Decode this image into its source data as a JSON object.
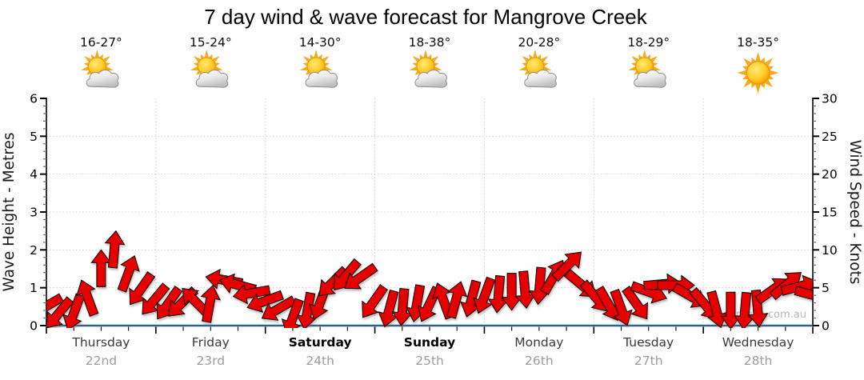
{
  "title": "7 day wind & wave forecast for Mangrove Creek",
  "watermark": "seabreeze.com.au",
  "days": [
    {
      "name": "Thursday",
      "date": "22nd",
      "temp": "16-27°",
      "icon": "sun-cloud",
      "weekend": false
    },
    {
      "name": "Friday",
      "date": "23rd",
      "temp": "15-24°",
      "icon": "sun-cloud",
      "weekend": false
    },
    {
      "name": "Saturday",
      "date": "24th",
      "temp": "14-30°",
      "icon": "sun-cloud",
      "weekend": true
    },
    {
      "name": "Sunday",
      "date": "25th",
      "temp": "18-38°",
      "icon": "sun-cloud",
      "weekend": true
    },
    {
      "name": "Monday",
      "date": "26th",
      "temp": "20-28°",
      "icon": "sun-cloud",
      "weekend": false
    },
    {
      "name": "Tuesday",
      "date": "27th",
      "temp": "18-29°",
      "icon": "sun-cloud",
      "weekend": false
    },
    {
      "name": "Wednesday",
      "date": "28th",
      "temp": "18-35°",
      "icon": "sun",
      "weekend": false
    }
  ],
  "left_axis": {
    "label": "Wave Height - Metres",
    "min": 0,
    "max": 6,
    "ticks": [
      0,
      1,
      2,
      3,
      4,
      5,
      6
    ]
  },
  "right_axis": {
    "label": "Wind Speed - Knots",
    "min": 0,
    "max": 30,
    "ticks": [
      0,
      5,
      10,
      15,
      20,
      25,
      30
    ]
  },
  "chart_data": {
    "type": "area",
    "style": "wind-direction-arrow-band",
    "title": "7 day wind & wave forecast for Mangrove Creek",
    "x": {
      "days": [
        "Thursday 22nd",
        "Friday 23rd",
        "Saturday 24th",
        "Sunday 25th",
        "Monday 26th",
        "Tuesday 27th",
        "Wednesday 28th"
      ],
      "points_per_day": 8,
      "hours_per_point": 3
    },
    "y_left_axis": {
      "label": "Wave Height - Metres",
      "range": [
        0,
        6
      ]
    },
    "y_right_axis": {
      "label": "Wind Speed - Knots",
      "range": [
        0,
        30
      ]
    },
    "grid": "dotted horizontal lines every 1 m (5 kn); dotted vertical lines at day boundaries",
    "legend": "none",
    "series": [
      {
        "name": "Wind speed & direction",
        "unit": "knots",
        "values": [
          4.2,
          3.8,
          4.2,
          6.0,
          10.0,
          12.5,
          9.2,
          7.1,
          5.6,
          5.2,
          5.1,
          4.9,
          5.3,
          7.4,
          6.8,
          5.4,
          4.6,
          3.9,
          3.6,
          4.4,
          5.6,
          7.8,
          8.8,
          8.2,
          5.4,
          4.7,
          4.9,
          5.4,
          5.2,
          5.6,
          5.8,
          6.0,
          6.4,
          6.6,
          6.9,
          7.2,
          7.7,
          8.6,
          9.7,
          7.4,
          6.0,
          5.2,
          4.8,
          5.2,
          5.8,
          6.8,
          6.6,
          5.6,
          5.0,
          4.6,
          4.4,
          4.4,
          4.7,
          6.2,
          7.0,
          6.6,
          5.2
        ],
        "directions_deg_pointing": [
          240,
          220,
          200,
          340,
          0,
          5,
          20,
          215,
          220,
          215,
          225,
          315,
          10,
          280,
          285,
          260,
          250,
          240,
          200,
          190,
          200,
          225,
          220,
          235,
          215,
          195,
          185,
          190,
          205,
          340,
          15,
          195,
          200,
          185,
          180,
          175,
          185,
          30,
          45,
          130,
          140,
          150,
          160,
          145,
          110,
          85,
          90,
          120,
          140,
          165,
          180,
          185,
          175,
          55,
          50,
          75,
          105
        ]
      }
    ],
    "colors": {
      "arrow_fill": "#e60000",
      "arrow_stroke": "#1c0000",
      "baseline_axis": "#2f618c",
      "grid_line": "#c8c8c8",
      "axis_line": "#000000",
      "day_label": "#333333",
      "date_label": "#9d9d9d",
      "watermark": "#b9b9b9"
    }
  }
}
